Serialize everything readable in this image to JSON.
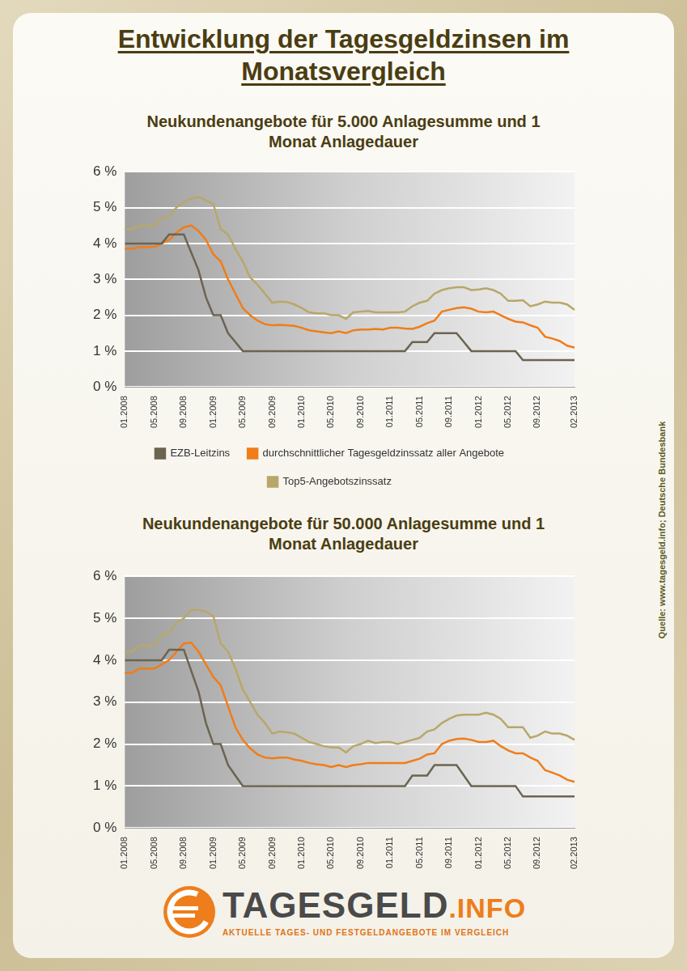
{
  "title": "Entwicklung der Tagesgeldzinsen im Monatsvergleich",
  "source": "Quelle: www.tagesgeld.info; Deutsche Bundesbank",
  "logo": {
    "name": "TAGESGELD",
    "suffix": ".INFO",
    "tagline": "AKTUELLE TAGES- UND FESTGELDANGEBOTE IM VERGLEICH"
  },
  "chart_data": [
    {
      "type": "line",
      "title": "Neukundenangebote für 5.000 Anlagesumme und 1 Monat Anlagedauer",
      "categories": [
        "01.2008",
        null,
        null,
        null,
        "05.2008",
        null,
        null,
        null,
        "09.2008",
        null,
        null,
        null,
        "01.2009",
        null,
        null,
        null,
        "05.2009",
        null,
        null,
        null,
        "09.2009",
        null,
        null,
        null,
        "01.2010",
        null,
        null,
        null,
        "05.2010",
        null,
        null,
        null,
        "09.2010",
        null,
        null,
        null,
        "01.2011",
        null,
        null,
        null,
        "05.2011",
        null,
        null,
        null,
        "09.2011",
        null,
        null,
        null,
        "01.2012",
        null,
        null,
        null,
        "05.2012",
        null,
        null,
        null,
        "09.2012",
        null,
        null,
        null,
        null,
        "02.2013"
      ],
      "series": [
        {
          "name": "EZB-Leitzins",
          "color": "#6b6450",
          "values": [
            4,
            4,
            4,
            4,
            4,
            4,
            4.25,
            4.25,
            4.25,
            3.75,
            3.25,
            2.5,
            2,
            2,
            1.5,
            1.25,
            1,
            1,
            1,
            1,
            1,
            1,
            1,
            1,
            1,
            1,
            1,
            1,
            1,
            1,
            1,
            1,
            1,
            1,
            1,
            1,
            1,
            1,
            1,
            1.25,
            1.25,
            1.25,
            1.5,
            1.5,
            1.5,
            1.5,
            1.25,
            1,
            1,
            1,
            1,
            1,
            1,
            1,
            0.75,
            0.75,
            0.75,
            0.75,
            0.75,
            0.75,
            0.75,
            0.75
          ]
        },
        {
          "name": "durchschnittlicher Tagesgeldzinssatz aller Angebote",
          "color": "#f07d1a",
          "values": [
            3.85,
            3.85,
            3.9,
            3.9,
            3.9,
            4.0,
            4.1,
            4.3,
            4.45,
            4.5,
            4.35,
            4.1,
            3.7,
            3.5,
            3.0,
            2.6,
            2.2,
            2.0,
            1.85,
            1.75,
            1.72,
            1.73,
            1.72,
            1.7,
            1.65,
            1.58,
            1.55,
            1.52,
            1.5,
            1.55,
            1.5,
            1.58,
            1.6,
            1.6,
            1.62,
            1.6,
            1.65,
            1.65,
            1.63,
            1.62,
            1.68,
            1.78,
            1.85,
            2.1,
            2.15,
            2.2,
            2.22,
            2.18,
            2.1,
            2.08,
            2.1,
            2.0,
            1.9,
            1.82,
            1.8,
            1.72,
            1.65,
            1.4,
            1.35,
            1.28,
            1.15,
            1.1
          ]
        },
        {
          "name": "Top5-Angebotszinssatz",
          "color": "#b8a76a",
          "values": [
            4.4,
            4.4,
            4.5,
            4.5,
            4.5,
            4.7,
            4.75,
            5.0,
            5.15,
            5.25,
            5.3,
            5.2,
            5.1,
            4.4,
            4.25,
            3.85,
            3.5,
            3.05,
            2.85,
            2.6,
            2.35,
            2.38,
            2.37,
            2.3,
            2.2,
            2.08,
            2.05,
            2.05,
            2.0,
            2.0,
            1.9,
            2.08,
            2.1,
            2.12,
            2.08,
            2.08,
            2.08,
            2.08,
            2.1,
            2.25,
            2.35,
            2.4,
            2.6,
            2.7,
            2.75,
            2.78,
            2.78,
            2.7,
            2.72,
            2.75,
            2.7,
            2.6,
            2.4,
            2.4,
            2.42,
            2.25,
            2.3,
            2.38,
            2.35,
            2.35,
            2.3,
            2.15
          ]
        }
      ],
      "ylim": [
        0,
        6
      ],
      "yticks": [
        {
          "value": 0,
          "label": "0 %"
        },
        {
          "value": 1,
          "label": "1 %"
        },
        {
          "value": 2,
          "label": "2 %"
        },
        {
          "value": 3,
          "label": "3 %"
        },
        {
          "value": 4,
          "label": "4 %"
        },
        {
          "value": 5,
          "label": "5 %"
        },
        {
          "value": 6,
          "label": "6 %"
        }
      ],
      "grid": "y",
      "legend": "bottom"
    },
    {
      "type": "line",
      "title": "Neukundenangebote für 50.000 Anlagesumme und 1 Monat Anlagedauer",
      "categories": [
        "01.2008",
        null,
        null,
        null,
        "05.2008",
        null,
        null,
        null,
        "09.2008",
        null,
        null,
        null,
        "01.2009",
        null,
        null,
        null,
        "05.2009",
        null,
        null,
        null,
        "09.2009",
        null,
        null,
        null,
        "01.2010",
        null,
        null,
        null,
        "05.2010",
        null,
        null,
        null,
        "09.2010",
        null,
        null,
        null,
        "01.2011",
        null,
        null,
        null,
        "05.2011",
        null,
        null,
        null,
        "09.2011",
        null,
        null,
        null,
        "01.2012",
        null,
        null,
        null,
        "05.2012",
        null,
        null,
        null,
        "09.2012",
        null,
        null,
        null,
        null,
        "02.2013"
      ],
      "series": [
        {
          "name": "EZB-Leitzins",
          "color": "#6b6450",
          "values": [
            4,
            4,
            4,
            4,
            4,
            4,
            4.25,
            4.25,
            4.25,
            3.75,
            3.25,
            2.5,
            2,
            2,
            1.5,
            1.25,
            1,
            1,
            1,
            1,
            1,
            1,
            1,
            1,
            1,
            1,
            1,
            1,
            1,
            1,
            1,
            1,
            1,
            1,
            1,
            1,
            1,
            1,
            1,
            1.25,
            1.25,
            1.25,
            1.5,
            1.5,
            1.5,
            1.5,
            1.25,
            1,
            1,
            1,
            1,
            1,
            1,
            1,
            0.75,
            0.75,
            0.75,
            0.75,
            0.75,
            0.75,
            0.75,
            0.75
          ]
        },
        {
          "name": "durchschnittlicher Tagesgeldzinssatz aller Angebote",
          "color": "#f07d1a",
          "values": [
            3.7,
            3.7,
            3.8,
            3.8,
            3.8,
            3.9,
            4.0,
            4.2,
            4.4,
            4.42,
            4.2,
            3.9,
            3.6,
            3.4,
            2.9,
            2.4,
            2.1,
            1.9,
            1.75,
            1.68,
            1.66,
            1.68,
            1.68,
            1.63,
            1.6,
            1.55,
            1.52,
            1.5,
            1.45,
            1.5,
            1.45,
            1.5,
            1.52,
            1.55,
            1.55,
            1.55,
            1.55,
            1.55,
            1.55,
            1.6,
            1.65,
            1.75,
            1.78,
            2.0,
            2.08,
            2.12,
            2.13,
            2.1,
            2.05,
            2.05,
            2.08,
            1.95,
            1.85,
            1.78,
            1.78,
            1.68,
            1.6,
            1.38,
            1.32,
            1.25,
            1.15,
            1.1
          ]
        },
        {
          "name": "Top5-Angebotszinssatz",
          "color": "#b8a76a",
          "values": [
            4.2,
            4.2,
            4.35,
            4.35,
            4.35,
            4.6,
            4.65,
            4.9,
            5.0,
            5.2,
            5.2,
            5.15,
            5.05,
            4.4,
            4.2,
            3.8,
            3.3,
            3.0,
            2.7,
            2.5,
            2.25,
            2.3,
            2.28,
            2.25,
            2.15,
            2.05,
            2.0,
            1.95,
            1.92,
            1.92,
            1.8,
            1.95,
            2.0,
            2.08,
            2.02,
            2.05,
            2.05,
            2.0,
            2.05,
            2.1,
            2.15,
            2.3,
            2.35,
            2.5,
            2.6,
            2.68,
            2.7,
            2.7,
            2.7,
            2.75,
            2.7,
            2.6,
            2.4,
            2.4,
            2.4,
            2.15,
            2.2,
            2.3,
            2.25,
            2.25,
            2.2,
            2.1
          ]
        }
      ],
      "ylim": [
        0,
        6
      ],
      "yticks": [
        {
          "value": 0,
          "label": "0 %"
        },
        {
          "value": 1,
          "label": "1 %"
        },
        {
          "value": 2,
          "label": "2 %"
        },
        {
          "value": 3,
          "label": "3 %"
        },
        {
          "value": 4,
          "label": "4 %"
        },
        {
          "value": 5,
          "label": "5 %"
        },
        {
          "value": 6,
          "label": "6 %"
        }
      ],
      "grid": "y"
    }
  ]
}
